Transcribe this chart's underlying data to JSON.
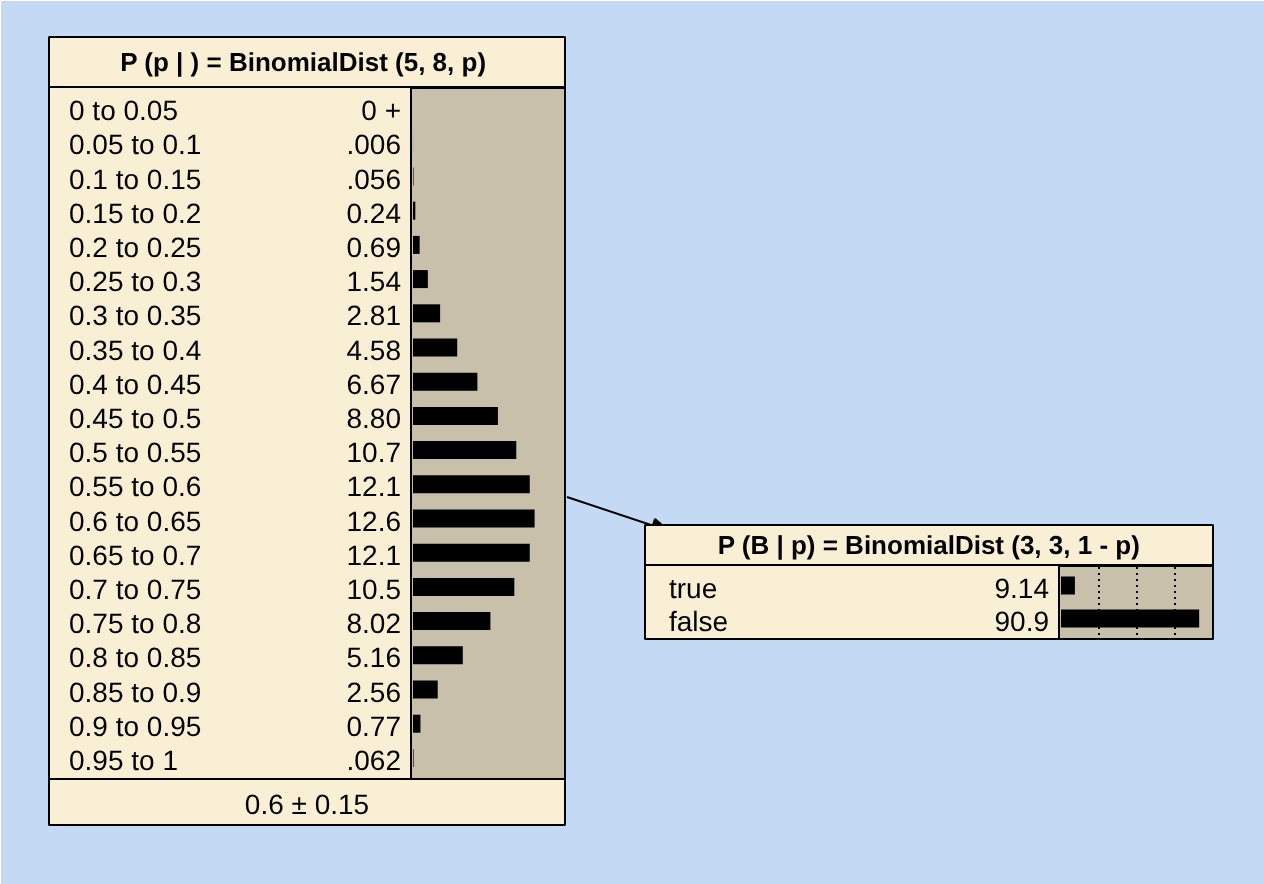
{
  "chart_data": [
    {
      "type": "bar",
      "orientation": "horizontal",
      "title": "P (p | ) =  BinomialDist (5, 8, p)",
      "categories": [
        "0 to 0.05",
        "0.05 to 0.1",
        "0.1 to 0.15",
        "0.15 to 0.2",
        "0.2 to 0.25",
        "0.25 to 0.3",
        "0.3 to 0.35",
        "0.35 to 0.4",
        "0.4 to 0.45",
        "0.45 to 0.5",
        "0.5 to 0.55",
        "0.55 to 0.6",
        "0.6 to 0.65",
        "0.65 to 0.7",
        "0.7 to 0.75",
        "0.75 to 0.8",
        "0.8 to 0.85",
        "0.85 to 0.9",
        "0.9 to 0.95",
        "0.95 to 1"
      ],
      "values": [
        0,
        0.006,
        0.056,
        0.24,
        0.69,
        1.54,
        2.81,
        4.58,
        6.67,
        8.8,
        10.7,
        12.1,
        12.6,
        12.1,
        10.5,
        8.02,
        5.16,
        2.56,
        0.77,
        0.062
      ],
      "value_labels": [
        "0 +",
        ".006",
        ".056",
        "0.24",
        "0.69",
        "1.54",
        "2.81",
        "4.58",
        "6.67",
        "8.80",
        "10.7",
        "12.1",
        "12.6",
        "12.1",
        "10.5",
        "8.02",
        "5.16",
        "2.56",
        "0.77",
        ".062"
      ],
      "color": "#000000",
      "tick_labels": "y",
      "annotations": [
        "0.6 ± 0.15"
      ]
    },
    {
      "type": "bar",
      "orientation": "horizontal",
      "title": "P (B | p) = BinomialDist (3, 3, 1 - p)",
      "categories": [
        "true",
        "false"
      ],
      "values": [
        9.14,
        90.9
      ],
      "value_labels": [
        "9.14",
        "90.9"
      ],
      "color": "#000000",
      "xlim": [
        0,
        100
      ],
      "xticks": [
        {
          "value": 25,
          "label": null
        },
        {
          "value": 50,
          "label": null
        },
        {
          "value": 75,
          "label": null
        }
      ],
      "grid": "x",
      "tick_labels": "y"
    }
  ]
}
